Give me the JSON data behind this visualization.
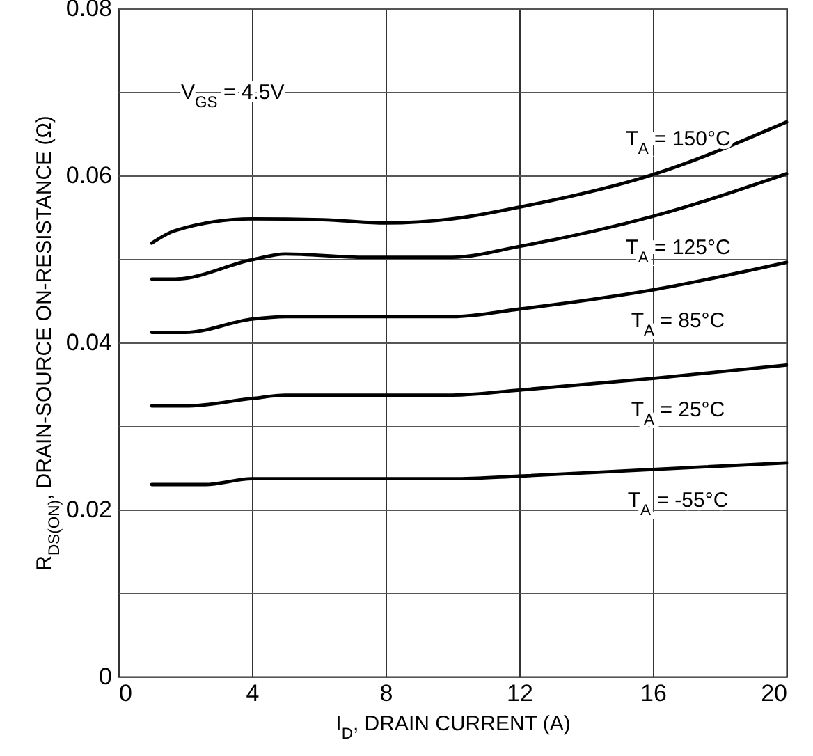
{
  "chart_data": {
    "type": "line",
    "xlabel": "I$_{D}$, DRAIN CURRENT (A)",
    "ylabel": "R$_{DS(ON)}$, DRAIN-SOURCE ON-RESISTANCE (Ω)",
    "annotations": [
      "V$_{GS}$ = 4.5V"
    ],
    "xlim": [
      0,
      20
    ],
    "xticks": [
      0,
      4,
      8,
      12,
      16,
      20
    ],
    "ylim": [
      0,
      0.08
    ],
    "yticks": [
      0,
      {
        "value": 0.01,
        "label": null
      },
      0.02,
      {
        "value": 0.03,
        "label": null
      },
      0.04,
      {
        "value": 0.05,
        "label": null
      },
      0.06,
      {
        "value": 0.07,
        "label": null
      },
      0.08
    ],
    "grid": true,
    "line_style": "solid",
    "marker": "none",
    "series": [
      {
        "name": "T$_{A}$ = 150°C",
        "color": "#000000",
        "x": [
          1,
          1.7,
          4,
          6.1,
          8,
          10,
          12,
          16,
          20
        ],
        "values": [
          0.0519,
          0.0534,
          0.0548,
          0.0547,
          0.0543,
          0.0548,
          0.0562,
          0.0601,
          0.0664
        ]
      },
      {
        "name": "T$_{A}$ = 125°C",
        "color": "#000000",
        "x": [
          1,
          1.7,
          4,
          5,
          7.3,
          10,
          12,
          16,
          20
        ],
        "values": [
          0.0476,
          0.0476,
          0.0499,
          0.0506,
          0.0502,
          0.0502,
          0.0515,
          0.0551,
          0.0602
        ]
      },
      {
        "name": "T$_{A}$ = 85°C",
        "color": "#000000",
        "x": [
          1,
          2,
          4,
          5,
          10,
          12,
          16,
          20
        ],
        "values": [
          0.0412,
          0.0412,
          0.0428,
          0.0431,
          0.0431,
          0.044,
          0.0463,
          0.0496
        ]
      },
      {
        "name": "T$_{A}$ = 25°C",
        "color": "#000000",
        "x": [
          1,
          2,
          4,
          5,
          10,
          12,
          16,
          20
        ],
        "values": [
          0.0324,
          0.0324,
          0.0333,
          0.0337,
          0.0337,
          0.0343,
          0.0357,
          0.0373
        ]
      },
      {
        "name": "T$_{A}$ = -55°C",
        "color": "#000000",
        "x": [
          1,
          2.6,
          4,
          10,
          12,
          16,
          20
        ],
        "values": [
          0.023,
          0.023,
          0.0237,
          0.0237,
          0.024,
          0.0248,
          0.0256
        ]
      }
    ]
  }
}
